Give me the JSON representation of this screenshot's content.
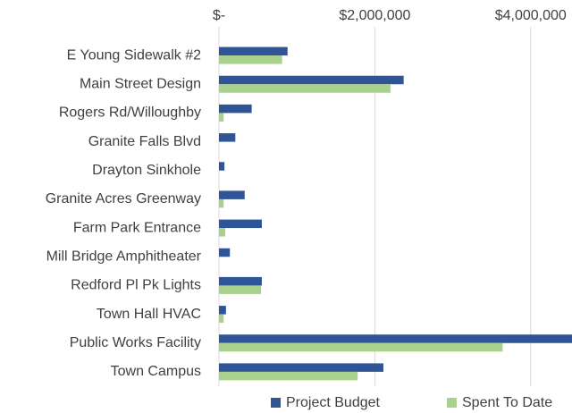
{
  "chart_data": {
    "type": "barh",
    "categories": [
      "E Young Sidewalk #2",
      "Main Street Design",
      "Rogers Rd/Willoughby",
      "Granite Falls Blvd",
      "Drayton Sinkhole",
      "Granite Acres Greenway",
      "Farm Park Entrance",
      "Mill Bridge Amphitheater",
      "Redford Pl Pk Lights",
      "Town Hall HVAC",
      "Public Works Facility",
      "Town Campus"
    ],
    "series": [
      {
        "name": "Project Budget",
        "color": "#2f5597",
        "values": [
          880000,
          2370000,
          420000,
          210000,
          70000,
          330000,
          550000,
          140000,
          550000,
          90000,
          4600000,
          2110000
        ]
      },
      {
        "name": "Spent To Date",
        "color": "#a9d18e",
        "values": [
          810000,
          2200000,
          60000,
          0,
          0,
          60000,
          80000,
          0,
          540000,
          60000,
          3640000,
          1780000
        ]
      }
    ],
    "xlim": [
      0,
      4530000
    ],
    "xticks": [
      {
        "value": 0,
        "label": "$-"
      },
      {
        "value": 2000000,
        "label": "$2,000,000"
      },
      {
        "value": 4000000,
        "label": "$4,000,000"
      }
    ],
    "grid": true,
    "legend": "bottom"
  }
}
